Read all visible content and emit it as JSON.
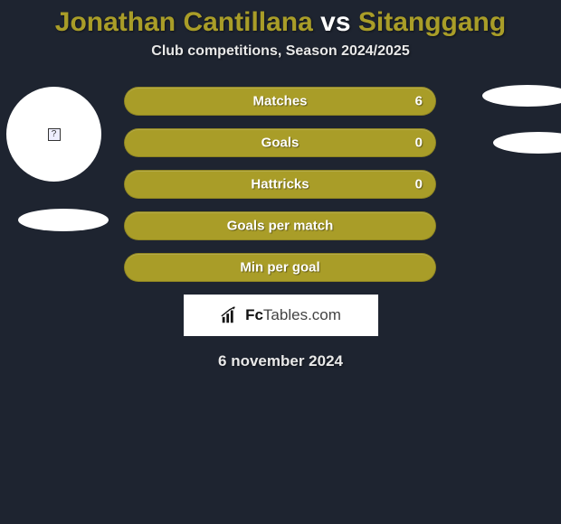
{
  "title": {
    "player1": "Jonathan Cantillana",
    "vs": "vs",
    "player2": "Sitanggang",
    "color_player": "#a99d28",
    "color_vs": "#ffffff"
  },
  "subtitle": "Club competitions, Season 2024/2025",
  "avatar": {
    "bg_color": "#ffffff",
    "placeholder_glyph": "?"
  },
  "bars": {
    "color": "#a99d28",
    "rows": [
      {
        "label": "Matches",
        "value": "6",
        "show_value": true
      },
      {
        "label": "Goals",
        "value": "0",
        "show_value": true
      },
      {
        "label": "Hattricks",
        "value": "0",
        "show_value": true
      },
      {
        "label": "Goals per match",
        "value": "",
        "show_value": false
      },
      {
        "label": "Min per goal",
        "value": "",
        "show_value": false
      }
    ]
  },
  "logo": {
    "brand_bold": "Fc",
    "brand_rest": "Tables",
    "brand_suffix": ".com"
  },
  "date": "6 november 2024",
  "colors": {
    "background": "#1e2430",
    "text_light": "#e8e8e8"
  }
}
